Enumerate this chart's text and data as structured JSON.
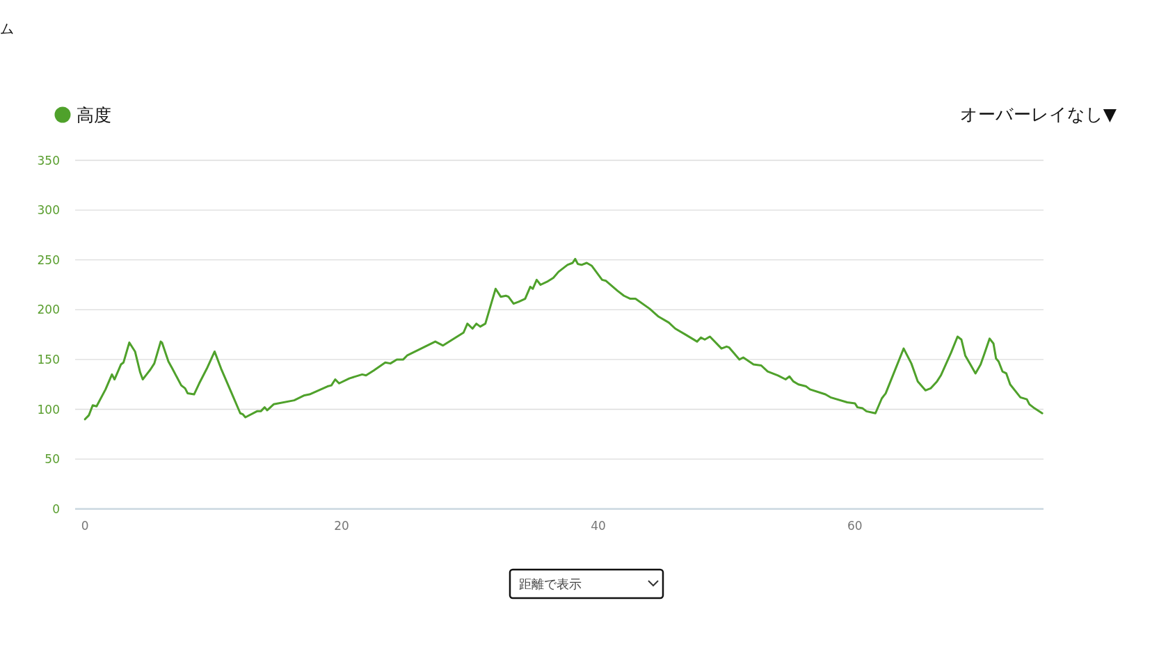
{
  "chart_data": {
    "type": "line",
    "xlim": [
      -0.77,
      74.7
    ],
    "ylim": [
      0,
      350
    ],
    "xticks": [
      0,
      20,
      40,
      60
    ],
    "yticks": [
      0,
      50,
      100,
      150,
      200,
      250,
      300,
      350
    ],
    "grid": "y",
    "legend": "top left",
    "marker": "none",
    "line_style": "solid",
    "series": [
      {
        "name": "高度",
        "color": "#4fa12b",
        "x": [
          0.0,
          0.3,
          0.6,
          0.9,
          1.6,
          2.1,
          2.3,
          2.8,
          3.0,
          3.45,
          3.9,
          4.3,
          4.5,
          4.8,
          5.1,
          5.4,
          5.9,
          6.0,
          6.5,
          6.8,
          7.5,
          7.8,
          8.0,
          8.5,
          8.9,
          9.5,
          10.1,
          10.6,
          11.4,
          12.1,
          12.3,
          12.5,
          13.4,
          13.7,
          14.0,
          14.2,
          14.7,
          16.3,
          17.1,
          17.5,
          18.9,
          19.2,
          19.5,
          19.8,
          20.6,
          21.6,
          21.9,
          22.5,
          23.4,
          23.8,
          24.3,
          24.8,
          25.1,
          27.3,
          27.9,
          29.5,
          29.8,
          30.2,
          30.5,
          30.8,
          31.2,
          31.7,
          32.0,
          32.4,
          32.8,
          33.0,
          33.4,
          33.8,
          34.3,
          34.7,
          34.9,
          35.2,
          35.5,
          36.0,
          36.5,
          36.9,
          37.6,
          38.0,
          38.2,
          38.4,
          38.7,
          39.1,
          39.5,
          40.3,
          40.6,
          41.5,
          42.0,
          42.5,
          42.9,
          44.0,
          44.7,
          45.5,
          46.0,
          46.8,
          47.7,
          48.0,
          48.3,
          48.7,
          49.6,
          50.0,
          50.2,
          51.0,
          51.3,
          52.1,
          52.7,
          53.2,
          54.0,
          54.6,
          54.9,
          55.2,
          55.6,
          56.2,
          56.5,
          57.7,
          58.1,
          59.4,
          60.0,
          60.2,
          60.6,
          60.9,
          61.6,
          62.1,
          62.4,
          63.8,
          64.4,
          64.9,
          65.5,
          65.9,
          66.4,
          66.7,
          67.5,
          68.0,
          68.3,
          68.6,
          69.0,
          69.4,
          69.8,
          70.1,
          70.5,
          70.8,
          71.0,
          71.2,
          71.5,
          71.8,
          72.1,
          72.9,
          73.4,
          73.6,
          74.0,
          74.6
        ],
        "values": [
          90,
          94,
          104,
          103,
          120,
          135,
          130,
          145,
          147,
          167,
          158,
          137,
          130,
          135,
          140,
          146,
          168,
          167,
          148,
          141,
          124,
          121,
          116,
          115,
          126,
          141,
          158,
          141,
          117,
          96,
          95,
          92,
          98,
          98,
          102,
          99,
          105,
          109,
          114,
          115,
          123,
          124,
          130,
          126,
          131,
          135,
          134,
          139,
          147,
          146,
          150,
          150,
          154,
          168,
          164,
          177,
          186,
          181,
          186,
          183,
          186,
          208,
          221,
          213,
          214,
          213,
          206,
          208,
          211,
          223,
          221,
          230,
          225,
          228,
          232,
          238,
          245,
          247,
          251,
          246,
          245,
          247,
          244,
          230,
          229,
          219,
          214,
          211,
          211,
          201,
          193,
          187,
          181,
          175,
          168,
          172,
          170,
          173,
          161,
          163,
          162,
          150,
          152,
          145,
          144,
          138,
          134,
          130,
          133,
          128,
          125,
          123,
          120,
          115,
          112,
          107,
          106,
          102,
          101,
          98,
          96,
          111,
          116,
          161,
          146,
          128,
          119,
          121,
          128,
          134,
          157,
          173,
          170,
          154,
          145,
          136,
          145,
          156,
          171,
          166,
          151,
          148,
          138,
          136,
          125,
          112,
          110,
          105,
          101,
          96
        ]
      }
    ],
    "annotations": [
      "ム",
      "オーバーレイなし▼",
      "距離で表示"
    ]
  }
}
